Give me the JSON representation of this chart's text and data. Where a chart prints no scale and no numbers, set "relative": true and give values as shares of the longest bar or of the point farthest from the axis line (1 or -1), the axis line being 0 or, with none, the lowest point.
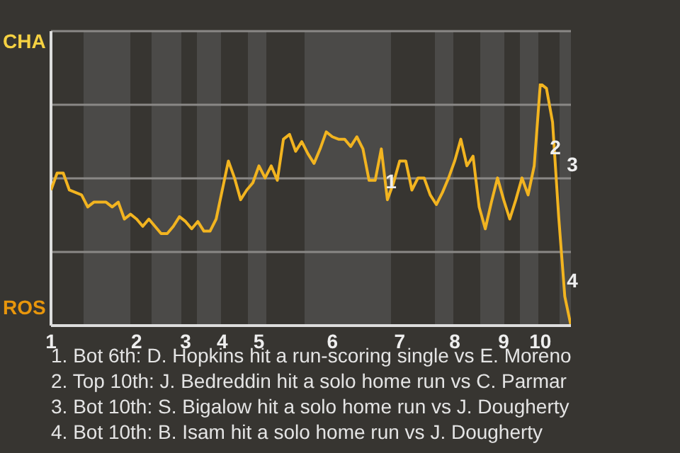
{
  "chart_data": {
    "type": "line",
    "relative": true,
    "categories": [
      "1",
      null,
      null,
      null,
      null,
      null,
      null,
      null,
      null,
      null,
      null,
      null,
      null,
      null,
      "2",
      null,
      null,
      null,
      null,
      null,
      null,
      null,
      "3",
      null,
      null,
      null,
      null,
      null,
      "4",
      null,
      null,
      null,
      null,
      null,
      "5",
      null,
      null,
      null,
      null,
      null,
      null,
      null,
      null,
      null,
      null,
      null,
      "6",
      null,
      null,
      null,
      null,
      null,
      null,
      null,
      null,
      null,
      null,
      "7",
      null,
      null,
      null,
      null,
      null,
      null,
      null,
      null,
      "8",
      null,
      null,
      null,
      null,
      null,
      null,
      null,
      "9",
      null,
      null,
      null,
      null,
      null,
      "10",
      null,
      null,
      null,
      null,
      null
    ],
    "series": [
      {
        "color": "#f2b420",
        "values": [
          0.56,
          0.63,
          0.63,
          0.56,
          0.55,
          0.54,
          0.49,
          0.51,
          0.51,
          0.51,
          0.49,
          0.51,
          0.44,
          0.46,
          0.44,
          0.41,
          0.44,
          0.41,
          0.38,
          0.38,
          0.41,
          0.45,
          0.43,
          0.4,
          0.43,
          0.39,
          0.39,
          0.44,
          0.56,
          0.68,
          0.61,
          0.52,
          0.56,
          0.59,
          0.66,
          0.61,
          0.66,
          0.6,
          0.77,
          0.79,
          0.72,
          0.76,
          0.71,
          0.67,
          0.73,
          0.8,
          0.78,
          0.77,
          0.77,
          0.74,
          0.78,
          0.73,
          0.6,
          0.6,
          0.73,
          0.52,
          0.59,
          0.68,
          0.68,
          0.56,
          0.61,
          0.61,
          0.54,
          0.5,
          0.55,
          0.61,
          0.68,
          0.77,
          0.66,
          0.7,
          0.49,
          0.4,
          0.51,
          0.61,
          0.52,
          0.44,
          0.52,
          0.61,
          0.54,
          0.66,
          1,
          0.98,
          0.84,
          0.45,
          0.12,
          0
        ]
      }
    ],
    "grid": "y",
    "marker": "none",
    "line_style": "solid",
    "annotations": [
      "CHA",
      "ROS",
      "1",
      "2",
      "3",
      "4",
      "1. Bot 6th: D. Hopkins hit a run-scoring single vs E. Moreno",
      "2. Top 10th: J. Bedreddin hit a solo home run vs C. Parmar",
      "3. Bot 10th: S. Bigalow hit a solo home run vs J. Dougherty",
      "4. Bot 10th: B. Isam hit a solo home run vs J. Dougherty"
    ]
  }
}
